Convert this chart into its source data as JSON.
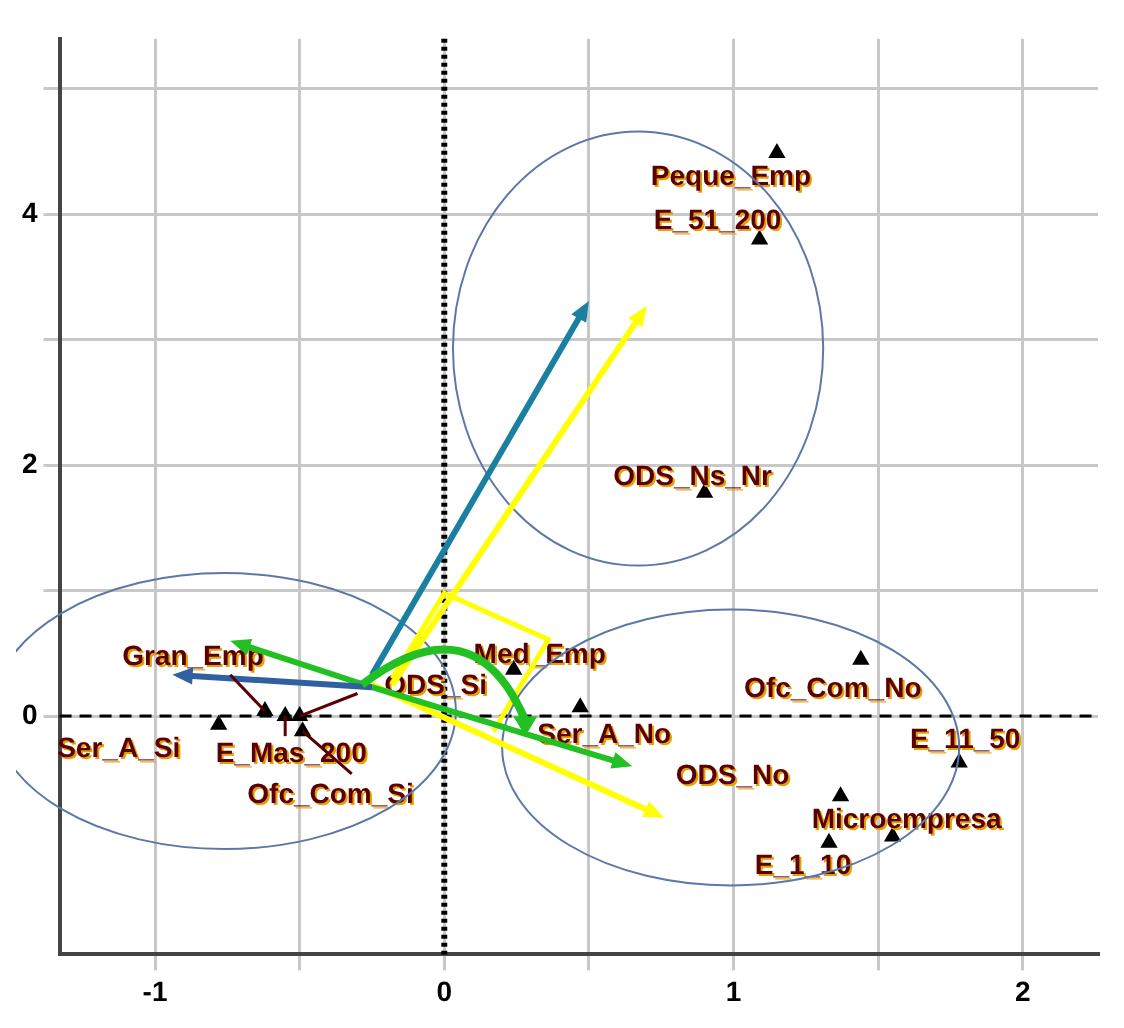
{
  "chart_data": {
    "type": "scatter",
    "marker": "triangle",
    "grid": true,
    "legend": false,
    "x": [
      1.15,
      1.09,
      0.9,
      0.24,
      0.47,
      1.44,
      1.78,
      1.37,
      1.55,
      1.33,
      -0.78,
      -0.62,
      -0.55,
      -0.49,
      -0.5
    ],
    "series": [
      {
        "color": "#000000",
        "values": [
          4.49,
          3.8,
          1.78,
          0.37,
          0.07,
          0.45,
          -0.37,
          -0.64,
          -0.96,
          -1.01,
          -0.07,
          0.04,
          0,
          -0.12,
          0
        ]
      }
    ],
    "xlim": [
      -1.33,
      2.26
    ],
    "ylim": [
      -1.9,
      5.4
    ],
    "xticks": [
      -1,
      {
        "value": -0.5,
        "label": null
      },
      0,
      {
        "value": 0.5,
        "label": null
      },
      1,
      {
        "value": 1.5,
        "label": null
      },
      2
    ],
    "yticks": [
      0,
      {
        "value": 1,
        "label": null
      },
      2,
      {
        "value": 3,
        "label": null
      },
      4,
      {
        "value": 5,
        "label": null
      }
    ],
    "ref_lines": [
      {
        "axis": "x",
        "value": 0,
        "line_style": "dotted",
        "color": "#000000"
      },
      {
        "axis": "y",
        "value": 0,
        "line_style": "dashed",
        "color": "#000000"
      }
    ],
    "annotations": [
      {
        "text": "Peque_Emp",
        "x": 1.15,
        "y": 4.49
      },
      {
        "text": "E_51_200",
        "x": 1.09,
        "y": 3.8
      },
      {
        "text": "ODS_Ns_Nr",
        "x": 0.9,
        "y": 1.78
      },
      {
        "text": "Med_Emp",
        "x": 0.24,
        "y": 0.37
      },
      {
        "text": "Ser_A_No",
        "x": 0.47,
        "y": 0.07
      },
      {
        "text": "Ofc_Com_No",
        "x": 1.44,
        "y": 0.45
      },
      {
        "text": "E_11_50",
        "x": 1.78,
        "y": -0.37
      },
      {
        "text": "ODS_No",
        "x": 1.37,
        "y": -0.64
      },
      {
        "text": "Microempresa",
        "x": 1.55,
        "y": -0.96
      },
      {
        "text": "E_1_10",
        "x": 1.33,
        "y": -1.01
      },
      {
        "text": "Ser_A_Si",
        "x": -0.78,
        "y": -0.07
      },
      {
        "text": "Gran_Emp",
        "x": -0.62,
        "y": 0.04
      },
      {
        "text": "E_Mas_200",
        "x": -0.55,
        "y": 0
      },
      {
        "text": "Ofc_Com_Si",
        "x": -0.49,
        "y": -0.12
      },
      {
        "text": "ODS_Si",
        "x": -0.5,
        "y": 0
      }
    ]
  }
}
